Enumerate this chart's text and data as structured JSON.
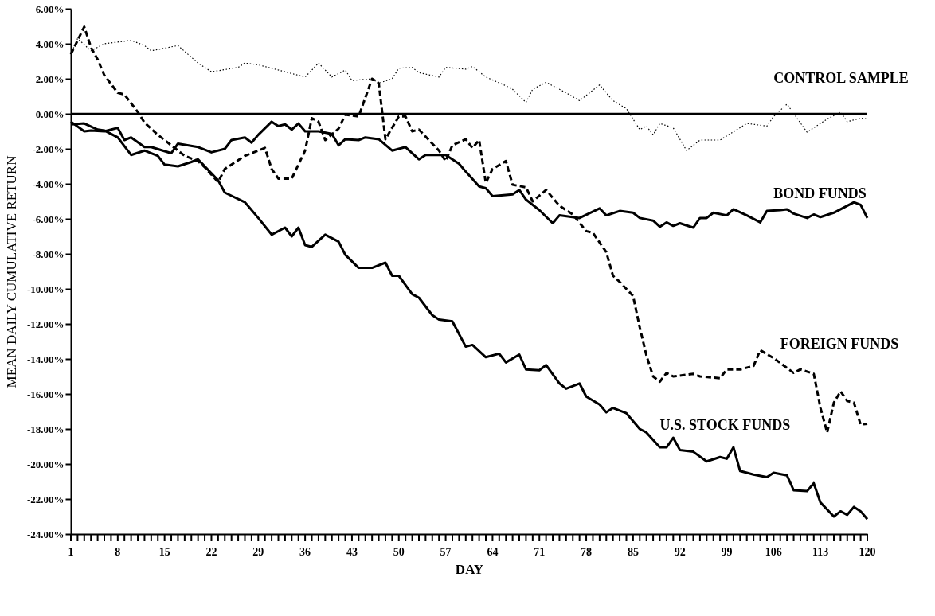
{
  "chart_data": {
    "type": "line",
    "xlabel": "DAY",
    "ylabel": "MEAN DAILY CUMULATIVE RETURN",
    "xlim": [
      1,
      120
    ],
    "xticks": [
      1,
      {
        "value": 2,
        "label": null
      },
      {
        "value": 3,
        "label": null
      },
      {
        "value": 4,
        "label": null
      },
      {
        "value": 5,
        "label": null
      },
      {
        "value": 6,
        "label": null
      },
      {
        "value": 7,
        "label": null
      },
      8,
      {
        "value": 9,
        "label": null
      },
      {
        "value": 10,
        "label": null
      },
      {
        "value": 11,
        "label": null
      },
      {
        "value": 12,
        "label": null
      },
      {
        "value": 13,
        "label": null
      },
      {
        "value": 14,
        "label": null
      },
      15,
      {
        "value": 16,
        "label": null
      },
      {
        "value": 17,
        "label": null
      },
      {
        "value": 18,
        "label": null
      },
      {
        "value": 19,
        "label": null
      },
      {
        "value": 20,
        "label": null
      },
      {
        "value": 21,
        "label": null
      },
      22,
      {
        "value": 23,
        "label": null
      },
      {
        "value": 24,
        "label": null
      },
      {
        "value": 25,
        "label": null
      },
      {
        "value": 26,
        "label": null
      },
      {
        "value": 27,
        "label": null
      },
      {
        "value": 28,
        "label": null
      },
      29,
      {
        "value": 30,
        "label": null
      },
      {
        "value": 31,
        "label": null
      },
      {
        "value": 32,
        "label": null
      },
      {
        "value": 33,
        "label": null
      },
      {
        "value": 34,
        "label": null
      },
      {
        "value": 35,
        "label": null
      },
      36,
      {
        "value": 37,
        "label": null
      },
      {
        "value": 38,
        "label": null
      },
      {
        "value": 39,
        "label": null
      },
      {
        "value": 40,
        "label": null
      },
      {
        "value": 41,
        "label": null
      },
      {
        "value": 42,
        "label": null
      },
      43,
      {
        "value": 44,
        "label": null
      },
      {
        "value": 45,
        "label": null
      },
      {
        "value": 46,
        "label": null
      },
      {
        "value": 47,
        "label": null
      },
      {
        "value": 48,
        "label": null
      },
      {
        "value": 49,
        "label": null
      },
      50,
      {
        "value": 51,
        "label": null
      },
      {
        "value": 52,
        "label": null
      },
      {
        "value": 53,
        "label": null
      },
      {
        "value": 54,
        "label": null
      },
      {
        "value": 55,
        "label": null
      },
      {
        "value": 56,
        "label": null
      },
      57,
      {
        "value": 58,
        "label": null
      },
      {
        "value": 59,
        "label": null
      },
      {
        "value": 60,
        "label": null
      },
      {
        "value": 61,
        "label": null
      },
      {
        "value": 62,
        "label": null
      },
      {
        "value": 63,
        "label": null
      },
      64,
      {
        "value": 65,
        "label": null
      },
      {
        "value": 66,
        "label": null
      },
      {
        "value": 67,
        "label": null
      },
      {
        "value": 68,
        "label": null
      },
      {
        "value": 69,
        "label": null
      },
      {
        "value": 70,
        "label": null
      },
      71,
      {
        "value": 72,
        "label": null
      },
      {
        "value": 73,
        "label": null
      },
      {
        "value": 74,
        "label": null
      },
      {
        "value": 75,
        "label": null
      },
      {
        "value": 76,
        "label": null
      },
      {
        "value": 77,
        "label": null
      },
      78,
      {
        "value": 79,
        "label": null
      },
      {
        "value": 80,
        "label": null
      },
      {
        "value": 81,
        "label": null
      },
      {
        "value": 82,
        "label": null
      },
      {
        "value": 83,
        "label": null
      },
      {
        "value": 84,
        "label": null
      },
      85,
      {
        "value": 86,
        "label": null
      },
      {
        "value": 87,
        "label": null
      },
      {
        "value": 88,
        "label": null
      },
      {
        "value": 89,
        "label": null
      },
      {
        "value": 90,
        "label": null
      },
      {
        "value": 91,
        "label": null
      },
      92,
      {
        "value": 93,
        "label": null
      },
      {
        "value": 94,
        "label": null
      },
      {
        "value": 95,
        "label": null
      },
      {
        "value": 96,
        "label": null
      },
      {
        "value": 97,
        "label": null
      },
      {
        "value": 98,
        "label": null
      },
      99,
      {
        "value": 100,
        "label": null
      },
      {
        "value": 101,
        "label": null
      },
      {
        "value": 102,
        "label": null
      },
      {
        "value": 103,
        "label": null
      },
      {
        "value": 104,
        "label": null
      },
      {
        "value": 105,
        "label": null
      },
      106,
      {
        "value": 107,
        "label": null
      },
      {
        "value": 108,
        "label": null
      },
      {
        "value": 109,
        "label": null
      },
      {
        "value": 110,
        "label": null
      },
      {
        "value": 111,
        "label": null
      },
      {
        "value": 112,
        "label": null
      },
      113,
      {
        "value": 114,
        "label": null
      },
      {
        "value": 115,
        "label": null
      },
      {
        "value": 116,
        "label": null
      },
      {
        "value": 117,
        "label": null
      },
      {
        "value": 118,
        "label": null
      },
      {
        "value": 119,
        "label": null
      },
      120
    ],
    "ylim": [
      -24,
      6
    ],
    "yticks": [
      {
        "value": 6,
        "label": "6.00%"
      },
      {
        "value": 4,
        "label": "4.00%"
      },
      {
        "value": 2,
        "label": "2.00%"
      },
      {
        "value": 0,
        "label": "0.00%"
      },
      {
        "value": -2,
        "label": "-2.00%"
      },
      {
        "value": -4,
        "label": "-4.00%"
      },
      {
        "value": -6,
        "label": "-6.00%"
      },
      {
        "value": -8,
        "label": "-8.00%"
      },
      {
        "value": -10,
        "label": "-10.00%"
      },
      {
        "value": -12,
        "label": "-12.00%"
      },
      {
        "value": -14,
        "label": "-14.00%"
      },
      {
        "value": -16,
        "label": "-16.00%"
      },
      {
        "value": -18,
        "label": "-18.00%"
      },
      {
        "value": -20,
        "label": "-20.00%"
      },
      {
        "value": -24,
        "label": "-24.00%"
      },
      {
        "value": -22,
        "label": "-22.00%"
      }
    ],
    "marker": "none",
    "ref_lines": [
      {
        "axis": "y",
        "value": 0,
        "color": "#000000",
        "line_style": "solid"
      }
    ],
    "series": [
      {
        "name": "CONTROL SAMPLE",
        "color": "#000000",
        "line_style": "dotted",
        "x": [
          1,
          2,
          4,
          6,
          10,
          12,
          13,
          17,
          20,
          22,
          26,
          27,
          29,
          34,
          36,
          38,
          40,
          42,
          43,
          46,
          47,
          49,
          50,
          52,
          53,
          56,
          57,
          60,
          61,
          63,
          66,
          67,
          69,
          70,
          72,
          75,
          77,
          80,
          82,
          84,
          86,
          87,
          88,
          89,
          91,
          93,
          95,
          98,
          102,
          105,
          106,
          108,
          111,
          114,
          116,
          117,
          119,
          120
        ],
        "values": [
          3.4,
          4.3,
          3.6,
          4.0,
          4.2,
          3.9,
          3.6,
          3.9,
          2.9,
          2.4,
          2.65,
          2.9,
          2.8,
          2.3,
          2.1,
          2.9,
          2.1,
          2.5,
          1.9,
          2.0,
          1.75,
          2.0,
          2.6,
          2.65,
          2.35,
          2.1,
          2.65,
          2.55,
          2.7,
          2.1,
          1.6,
          1.4,
          0.65,
          1.4,
          1.8,
          1.2,
          0.75,
          1.65,
          0.75,
          0.3,
          -0.9,
          -0.7,
          -1.2,
          -0.55,
          -0.8,
          -2.1,
          -1.5,
          -1.5,
          -0.55,
          -0.7,
          -0.15,
          0.55,
          -1.05,
          -0.3,
          0.1,
          -0.45,
          -0.25,
          -0.3
        ]
      },
      {
        "name": "BOND FUNDS",
        "color": "#000000",
        "line_style": "solid",
        "x": [
          1,
          3,
          4,
          6,
          8,
          9,
          10,
          12,
          13,
          16,
          17,
          20,
          22,
          24,
          25,
          27,
          28,
          29,
          31,
          32,
          33,
          34,
          35,
          36,
          38,
          40,
          41,
          42,
          44,
          45,
          47,
          49,
          51,
          53,
          54,
          57,
          59,
          60,
          62,
          63,
          64,
          67,
          68,
          69,
          71,
          73,
          74,
          77,
          80,
          81,
          83,
          85,
          86,
          88,
          89,
          90,
          91,
          92,
          94,
          95,
          96,
          97,
          99,
          100,
          102,
          104,
          105,
          107,
          108,
          109,
          111,
          112,
          113,
          115,
          118,
          119,
          120
        ],
        "values": [
          -0.45,
          -1.0,
          -0.95,
          -1.0,
          -0.8,
          -1.5,
          -1.35,
          -1.9,
          -1.9,
          -2.25,
          -1.7,
          -1.9,
          -2.2,
          -2.0,
          -1.5,
          -1.35,
          -1.65,
          -1.2,
          -0.45,
          -0.7,
          -0.6,
          -0.9,
          -0.55,
          -1.0,
          -1.0,
          -1.15,
          -1.8,
          -1.45,
          -1.5,
          -1.35,
          -1.45,
          -2.1,
          -1.9,
          -2.6,
          -2.35,
          -2.35,
          -2.85,
          -3.3,
          -4.15,
          -4.25,
          -4.7,
          -4.6,
          -4.35,
          -4.9,
          -5.5,
          -6.25,
          -5.8,
          -5.95,
          -5.4,
          -5.8,
          -5.55,
          -5.65,
          -5.95,
          -6.1,
          -6.45,
          -6.2,
          -6.4,
          -6.25,
          -6.5,
          -5.95,
          -5.95,
          -5.65,
          -5.8,
          -5.45,
          -5.8,
          -6.2,
          -5.55,
          -5.5,
          -5.45,
          -5.7,
          -5.95,
          -5.75,
          -5.9,
          -5.65,
          -5.05,
          -5.2,
          -5.95
        ]
      },
      {
        "name": "FOREIGN FUNDS",
        "color": "#000000",
        "line_style": "dashed",
        "x": [
          1,
          3,
          4,
          5,
          6,
          8,
          9,
          11,
          12,
          14,
          16,
          18,
          20,
          21,
          23,
          24,
          27,
          30,
          31,
          32,
          34,
          36,
          37,
          38,
          39,
          41,
          42,
          44,
          46,
          47,
          48,
          50,
          51,
          52,
          53,
          56,
          57,
          58,
          60,
          61,
          62,
          63,
          64,
          66,
          67,
          69,
          70,
          72,
          74,
          76,
          78,
          79,
          81,
          82,
          83,
          85,
          86,
          87,
          88,
          89,
          90,
          91,
          94,
          95,
          98,
          99,
          101,
          103,
          104,
          106,
          109,
          110,
          112,
          113,
          114,
          115,
          116,
          117,
          118,
          119,
          120
        ],
        "values": [
          3.4,
          4.97,
          3.8,
          3.1,
          2.2,
          1.2,
          1.1,
          0.1,
          -0.5,
          -1.2,
          -1.8,
          -2.4,
          -2.7,
          -3.05,
          -3.9,
          -3.15,
          -2.4,
          -1.95,
          -3.15,
          -3.7,
          -3.7,
          -2.1,
          -0.25,
          -0.45,
          -1.5,
          -0.85,
          -0.05,
          -0.15,
          2.0,
          1.75,
          -1.45,
          -0.15,
          -0.15,
          -1.0,
          -0.9,
          -2.1,
          -2.7,
          -1.8,
          -1.45,
          -1.95,
          -1.5,
          -3.95,
          -3.15,
          -2.7,
          -4.05,
          -4.2,
          -5.0,
          -4.35,
          -5.25,
          -5.75,
          -6.7,
          -6.8,
          -7.9,
          -9.25,
          -9.6,
          -10.4,
          -12.2,
          -13.8,
          -15.0,
          -15.3,
          -14.8,
          -15.0,
          -14.85,
          -15.0,
          -15.1,
          -14.6,
          -14.6,
          -14.4,
          -13.5,
          -13.95,
          -14.8,
          -14.6,
          -14.85,
          -16.8,
          -18.2,
          -16.5,
          -15.85,
          -16.4,
          -16.5,
          -17.75,
          -17.7
        ]
      },
      {
        "name": "U.S. STOCK FUNDS",
        "color": "#000000",
        "line_style": "solid",
        "x": [
          1,
          3,
          5,
          6,
          8,
          10,
          12,
          14,
          15,
          17,
          19,
          20,
          21,
          23,
          24,
          27,
          29,
          31,
          33,
          34,
          35,
          36,
          37,
          39,
          41,
          42,
          44,
          46,
          48,
          49,
          50,
          52,
          53,
          55,
          56,
          58,
          60,
          61,
          63,
          65,
          66,
          68,
          69,
          71,
          72,
          74,
          75,
          77,
          78,
          80,
          81,
          82,
          84,
          86,
          87,
          89,
          90,
          91,
          92,
          94,
          96,
          98,
          99,
          100,
          101,
          103,
          105,
          106,
          108,
          109,
          111,
          112,
          113,
          115,
          116,
          117,
          118,
          119,
          120
        ],
        "values": [
          -0.6,
          -0.55,
          -0.9,
          -0.95,
          -1.35,
          -2.35,
          -2.1,
          -2.4,
          -2.9,
          -3.0,
          -2.75,
          -2.6,
          -3.0,
          -3.8,
          -4.5,
          -5.05,
          -5.95,
          -6.9,
          -6.5,
          -7.0,
          -6.5,
          -7.5,
          -7.6,
          -6.9,
          -7.3,
          -8.05,
          -8.8,
          -8.8,
          -8.5,
          -9.25,
          -9.25,
          -10.3,
          -10.5,
          -11.5,
          -11.75,
          -11.85,
          -13.3,
          -13.2,
          -13.9,
          -13.7,
          -14.2,
          -13.75,
          -14.6,
          -14.65,
          -14.35,
          -15.4,
          -15.7,
          -15.4,
          -16.15,
          -16.6,
          -17.05,
          -16.8,
          -17.1,
          -18.0,
          -18.2,
          -19.05,
          -19.05,
          -18.5,
          -19.2,
          -19.3,
          -19.85,
          -19.6,
          -19.7,
          -19.05,
          -20.4,
          -20.6,
          -20.75,
          -20.5,
          -20.65,
          -21.5,
          -21.55,
          -21.1,
          -22.2,
          -23.0,
          -22.7,
          -22.9,
          -22.45,
          -22.7,
          -23.15
        ]
      }
    ]
  }
}
